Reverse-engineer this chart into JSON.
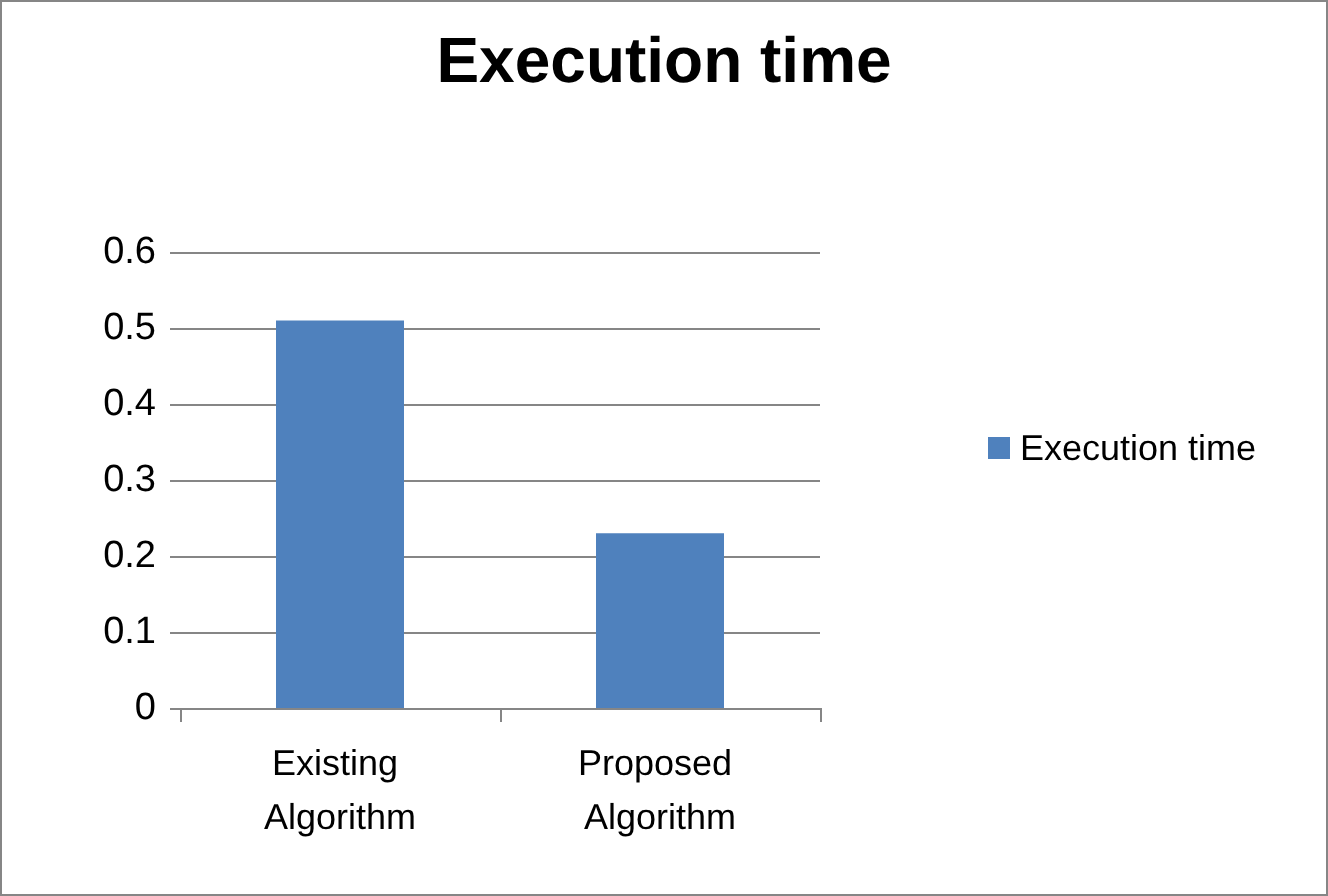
{
  "chart_data": {
    "type": "bar",
    "title": "Execution time",
    "categories": [
      "Existing Algorithm",
      "Proposed Algorithm"
    ],
    "series": [
      {
        "name": "Execution time",
        "color": "#4f81bd",
        "values": [
          0.51,
          0.23
        ]
      }
    ],
    "ylim": [
      0,
      0.6
    ],
    "yticks": [
      0,
      0.1,
      0.2,
      0.3,
      0.4,
      0.5,
      0.6
    ],
    "grid": "y",
    "legend": "right"
  }
}
